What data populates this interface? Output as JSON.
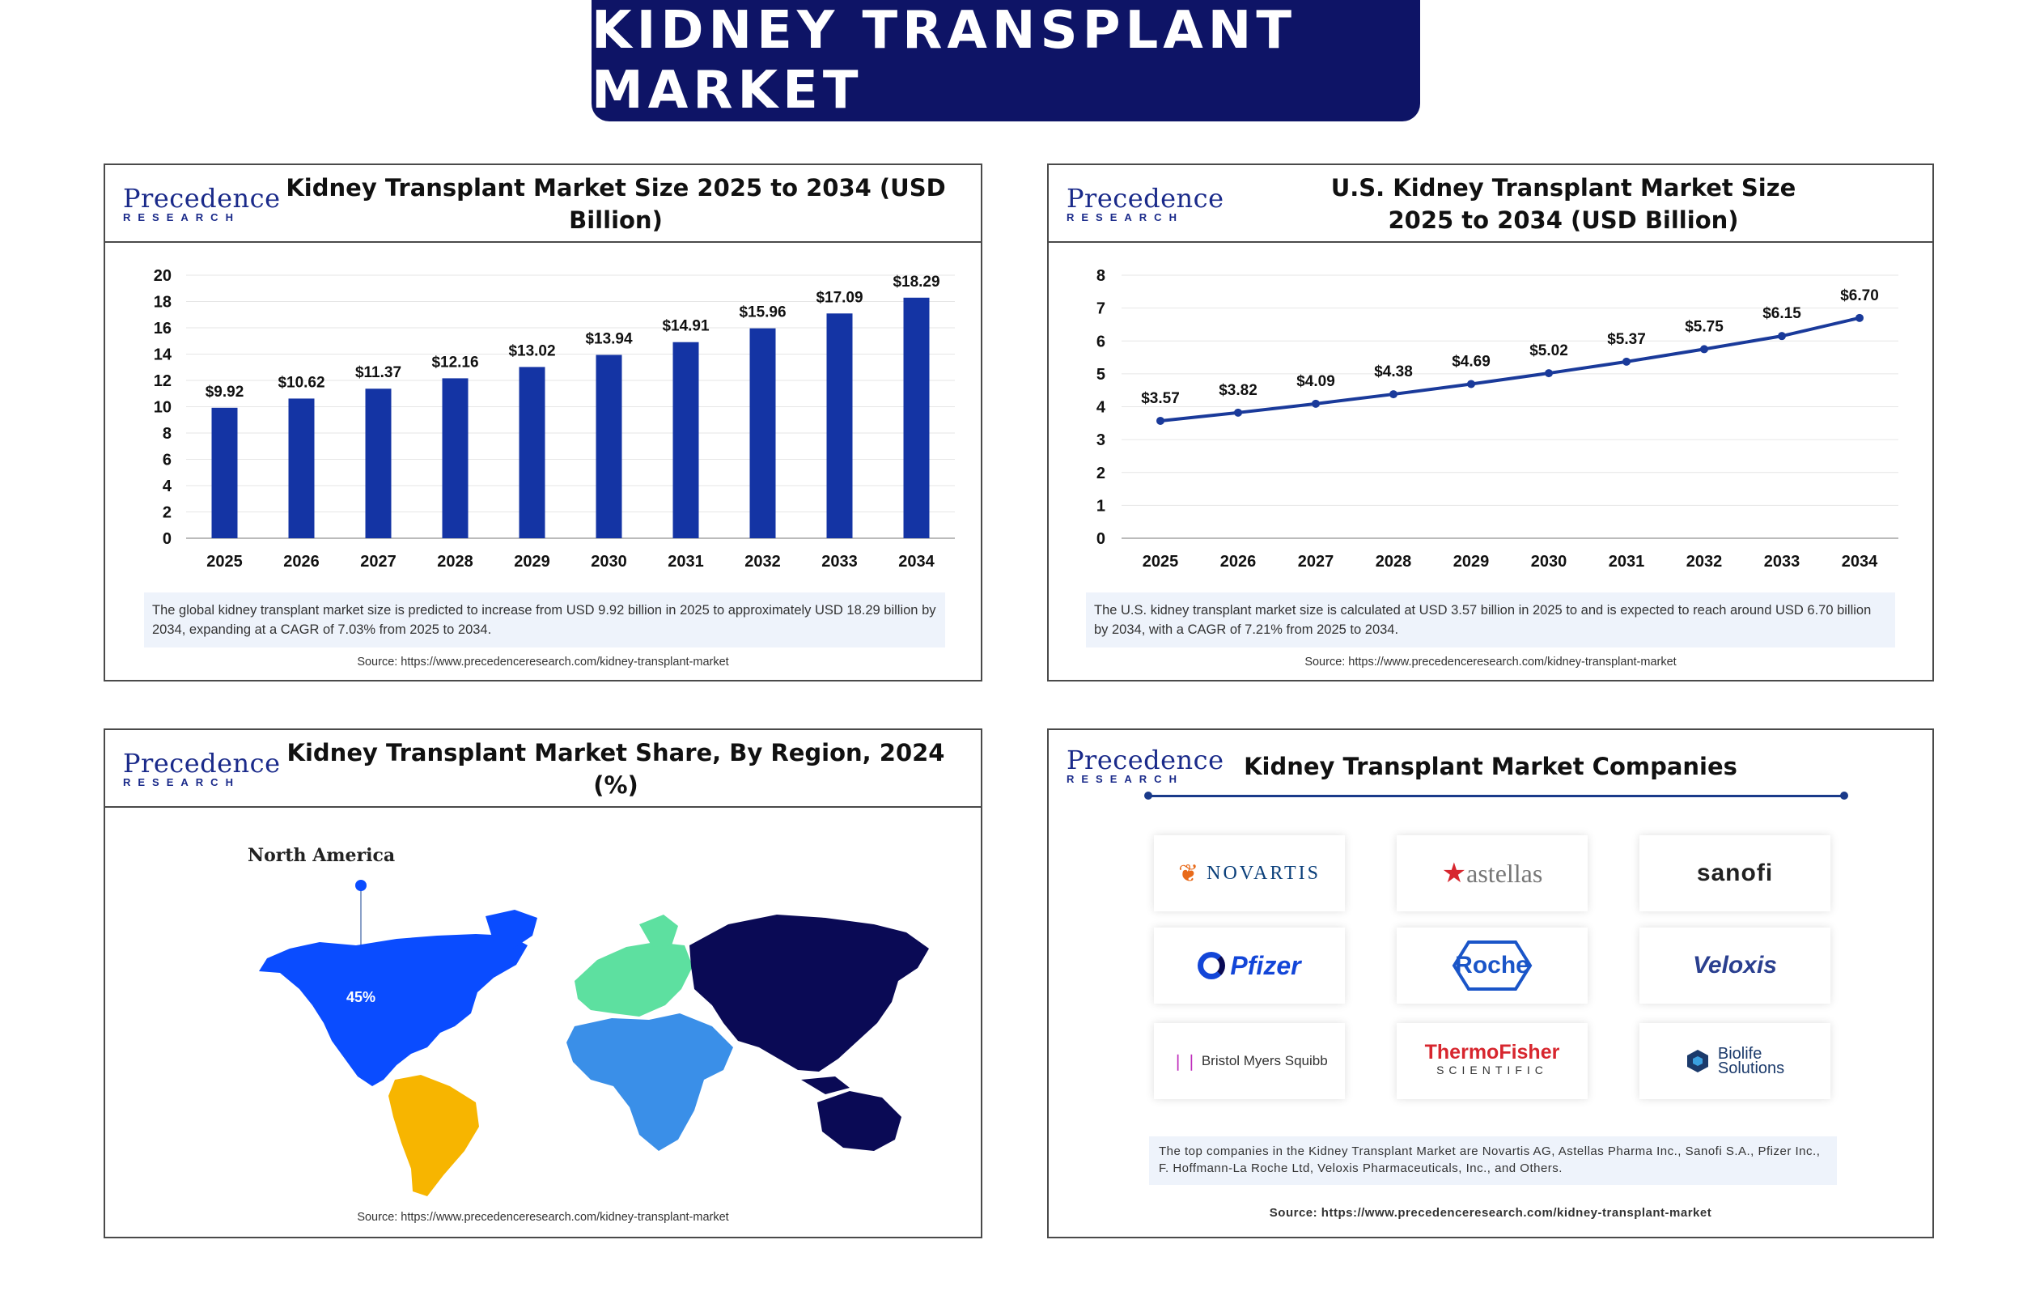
{
  "header": {
    "title": "KIDNEY TRANSPLANT MARKET"
  },
  "logo": {
    "name": "Precedence",
    "sub": "RESEARCH"
  },
  "panels": {
    "global": {
      "title": "Kidney Transplant Market Size 2025 to 2034 (USD Billion)",
      "note": "The global kidney transplant market size is predicted to increase from USD 9.92 billion in 2025 to approximately USD 18.29 billion by 2034, expanding at a CAGR of 7.03% from 2025 to 2034.",
      "source": "Source: https://www.precedenceresearch.com/kidney-transplant-market"
    },
    "us": {
      "title": "U.S. Kidney Transplant Market Size 2025 to 2034 (USD Billion)",
      "note": "The U.S. kidney transplant market size is calculated at USD 3.57 billion in 2025 to and is expected to reach around USD 6.70 billion by 2034, with a CAGR of 7.21% from 2025 to 2034.",
      "source": "Source: https://www.precedenceresearch.com/kidney-transplant-market"
    },
    "region": {
      "title": "Kidney Transplant Market Share, By Region, 2024 (%)",
      "callout_label": "North America",
      "callout_value": "45%",
      "source": "Source: https://www.precedenceresearch.com/kidney-transplant-market"
    },
    "companies": {
      "title": "Kidney Transplant Market Companies",
      "logos": [
        {
          "name": "NOVARTIS"
        },
        {
          "name": "astellas"
        },
        {
          "name": "sanofi"
        },
        {
          "name": "Pfizer"
        },
        {
          "name": "Roche"
        },
        {
          "name": "Veloxis"
        },
        {
          "name": "Bristol Myers Squibb"
        },
        {
          "name": "ThermoFisher",
          "sub": "SCIENTIFIC"
        },
        {
          "name": "Biolife",
          "sub": "Solutions"
        }
      ],
      "note": "The top companies in the Kidney Transplant Market are Novartis AG, Astellas Pharma Inc., Sanofi S.A., Pfizer Inc., F. Hoffmann-La Roche Ltd, Veloxis Pharmaceuticals, Inc., and Others.",
      "source": "Source: https://www.precedenceresearch.com/kidney-transplant-market"
    }
  },
  "colors": {
    "banner": "#0e1466",
    "bar": "#1434a4",
    "line": "#1a3a9a",
    "north_america": "#0a4cff",
    "south_america": "#f7b500",
    "europe": "#5de0a0",
    "africa_me": "#3a8fe8",
    "asia_pacific": "#0a0a55"
  },
  "chart_data": [
    {
      "type": "bar",
      "title": "Kidney Transplant Market Size 2025 to 2034 (USD Billion)",
      "categories": [
        "2025",
        "2026",
        "2027",
        "2028",
        "2029",
        "2030",
        "2031",
        "2032",
        "2033",
        "2034"
      ],
      "values": [
        9.92,
        10.62,
        11.37,
        12.16,
        13.02,
        13.94,
        14.91,
        15.96,
        17.09,
        18.29
      ],
      "labels": [
        "$9.92",
        "$10.62",
        "$11.37",
        "$12.16",
        "$13.02",
        "$13.94",
        "$14.91",
        "$15.96",
        "$17.09",
        "$18.29"
      ],
      "ylim": [
        0,
        20
      ],
      "yticks": [
        0,
        2,
        4,
        6,
        8,
        10,
        12,
        14,
        16,
        18,
        20
      ],
      "grid": true
    },
    {
      "type": "line",
      "title": "U.S. Kidney Transplant Market Size 2025 to 2034 (USD Billion)",
      "categories": [
        "2025",
        "2026",
        "2027",
        "2028",
        "2029",
        "2030",
        "2031",
        "2032",
        "2033",
        "2034"
      ],
      "values": [
        3.57,
        3.82,
        4.09,
        4.38,
        4.69,
        5.02,
        5.37,
        5.75,
        6.15,
        6.7
      ],
      "labels": [
        "$3.57",
        "$3.82",
        "$4.09",
        "$4.38",
        "$4.69",
        "$5.02",
        "$5.37",
        "$5.75",
        "$6.15",
        "$6.70"
      ],
      "ylim": [
        0,
        8
      ],
      "yticks": [
        0,
        1,
        2,
        3,
        4,
        5,
        6,
        7,
        8
      ],
      "grid": true
    },
    {
      "type": "map",
      "title": "Kidney Transplant Market Share, By Region, 2024 (%)",
      "annotations": [
        {
          "region": "North America",
          "value": 45
        }
      ]
    }
  ]
}
